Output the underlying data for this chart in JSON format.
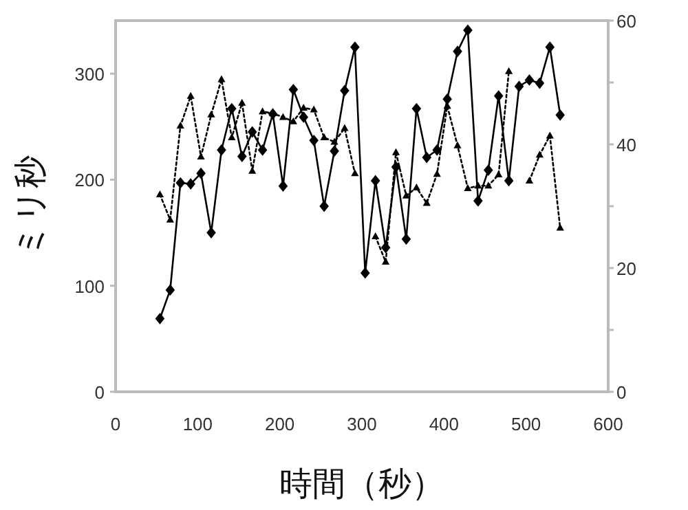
{
  "chart_data": {
    "type": "line",
    "xlabel": "時間（秒）",
    "ylabel": "ミリ秒",
    "x": [
      54,
      66.5,
      79,
      91.5,
      104,
      116.5,
      129,
      141.5,
      154,
      166.5,
      179,
      191.5,
      204,
      216.5,
      229,
      241.5,
      254,
      266.5,
      279,
      291.5,
      304,
      316.5,
      329,
      341.5,
      354,
      366.5,
      379,
      391.5,
      404,
      416.5,
      429,
      441.5,
      454,
      466.5,
      479,
      491.5,
      504,
      516.5,
      529,
      541.5
    ],
    "series": [
      {
        "color": "#000000",
        "marker": "diamond",
        "line_style": "solid",
        "values": [
          69,
          96,
          197,
          196,
          206,
          150,
          228,
          267,
          222,
          245,
          228,
          262,
          194,
          285,
          259,
          237,
          175,
          227,
          284,
          325,
          112,
          199,
          136,
          212,
          144,
          267,
          221,
          228,
          276,
          321,
          341,
          180,
          209,
          279,
          199,
          288,
          294,
          291,
          325,
          261
        ]
      },
      {
        "color": "#000000",
        "marker": "triangle",
        "line_style": "dotted",
        "axis": "y2",
        "values": [
          31.9,
          27.8,
          43,
          47.8,
          38,
          44.8,
          50.5,
          41.1,
          46.7,
          35.7,
          45.3,
          45,
          44.4,
          43.7,
          45.9,
          45.6,
          41.1,
          40.4,
          42.6,
          35.3,
          null,
          25.1,
          21,
          38.7,
          31.7,
          33,
          30.5,
          35.2,
          46.2,
          39.8,
          32.9,
          33.3,
          33.3,
          35.1,
          51.8,
          null,
          34.1,
          38.3,
          41.4,
          26.5
        ]
      }
    ],
    "xlim": [
      0,
      600
    ],
    "xticks": [
      0,
      100,
      200,
      300,
      400,
      500,
      600
    ],
    "ylim": [
      0,
      350
    ],
    "yticks": [
      0,
      100,
      200,
      300
    ],
    "y2lim": [
      0,
      60
    ],
    "y2ticks": [
      0,
      {
        "value": 10,
        "label": null
      },
      20,
      {
        "value": 30,
        "label": null
      },
      40,
      {
        "value": 50,
        "label": null
      },
      60
    ]
  }
}
